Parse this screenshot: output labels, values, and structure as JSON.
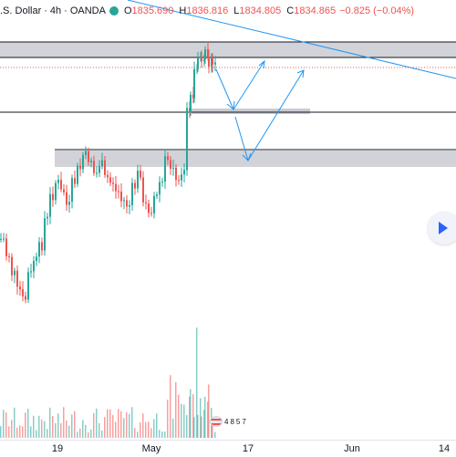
{
  "legend": {
    "title": ".S. Dollar",
    "interval": "4h",
    "source": "OANDA",
    "open_key": "O",
    "open": "1835.690",
    "high_key": "H",
    "high": "1836.816",
    "low_key": "L",
    "low": "1834.805",
    "close_key": "C",
    "close": "1834.865",
    "change": "−0.825 (−0.04%)",
    "up_color": "#26a69a",
    "down_color": "#ef5350"
  },
  "time_axis": {
    "ticks": [
      "19",
      "May",
      "17",
      "Jun",
      "14"
    ]
  },
  "events": {
    "labels": [
      "4",
      "8",
      "5",
      "7"
    ]
  },
  "colors": {
    "zone": "#c9cbd1",
    "drawing": "#2196f3",
    "price_line": "#ef5350",
    "volume_up": "#26a69a",
    "volume_down": "#ef5350"
  },
  "chart_data": {
    "type": "candlestick",
    "symbol_fragment": ".S. Dollar",
    "interval": "4h",
    "last_open": 1835.69,
    "last_high": 1836.816,
    "last_low": 1834.805,
    "last_close": 1834.865
  }
}
